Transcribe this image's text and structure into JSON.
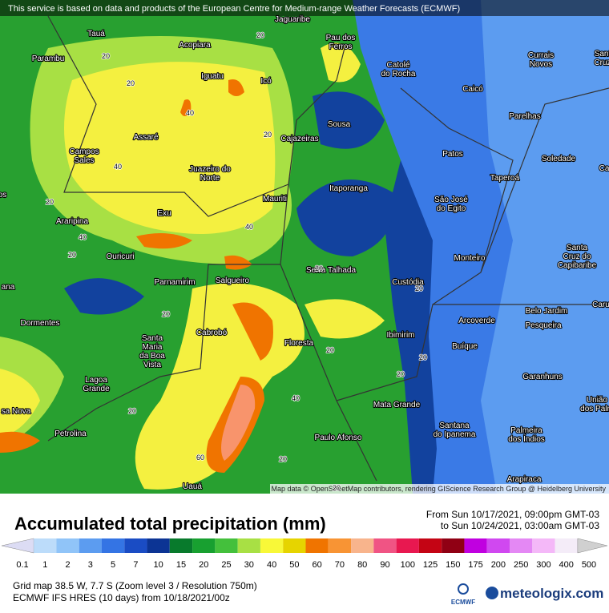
{
  "banner": "This service is based on data and products of the European Centre for Medium-range Weather Forecasts (ECMWF)",
  "map": {
    "cities": [
      [
        "Jaguaribe"
      ],
      [
        "Tauá"
      ],
      [
        "Acopiara"
      ],
      [
        "Pau dos",
        "Ferros"
      ],
      [
        "Parambu"
      ],
      [
        "Catolé",
        "do Rocha"
      ],
      [
        "Currais",
        "Novos"
      ],
      [
        "Sant",
        "Cruz"
      ],
      [
        "Iguatu"
      ],
      [
        "Icó"
      ],
      [
        "Caicó"
      ],
      [
        "Parelhas"
      ],
      [
        "Sousa"
      ],
      [
        "Assaré"
      ],
      [
        "Cajazeiras"
      ],
      [
        "Campos",
        "Sales"
      ],
      [
        "Patos"
      ],
      [
        "Soledade"
      ],
      [
        "Ca"
      ],
      [
        "os"
      ],
      [
        "Juazeiro do",
        "Norte"
      ],
      [
        "Taperoá"
      ],
      [
        "Itaporanga"
      ],
      [
        "Mauriti"
      ],
      [
        "São José",
        "do Egito"
      ],
      [
        "Exu"
      ],
      [
        "Araripina"
      ],
      [
        "Santa",
        "Cruz do",
        "Capibaribe"
      ],
      [
        "Ouricuri"
      ],
      [
        "Monteiro"
      ],
      [
        "Serra Talhada"
      ],
      [
        "Salgueiro"
      ],
      [
        "Parnamirim"
      ],
      [
        "Custódia"
      ],
      [
        "ana"
      ],
      [
        "Caru"
      ],
      [
        "Belo Jardim"
      ],
      [
        "Pesqueira"
      ],
      [
        "Arcoverde"
      ],
      [
        "Dormentes"
      ],
      [
        "Cabrobó"
      ],
      [
        "Ibimirim"
      ],
      [
        "Santa",
        "Maria",
        "da Boa",
        "Vista"
      ],
      [
        "Floresta"
      ],
      [
        "Buíque"
      ],
      [
        "Garanhuns"
      ],
      [
        "Lagoa",
        "Grande"
      ],
      [
        "União",
        "dos Palm"
      ],
      [
        "Mata Grande"
      ],
      [
        "sa Nova"
      ],
      [
        "Santana",
        "do Ipanema"
      ],
      [
        "Petrolina"
      ],
      [
        "Paulo Afonso"
      ],
      [
        "Palmeira",
        "dos Índios"
      ],
      [
        "Arapiraca"
      ],
      [
        "Uauá"
      ]
    ],
    "contour_labels": [
      20,
      20,
      20,
      40,
      40,
      20,
      40,
      20,
      40,
      20,
      20,
      20,
      20,
      20,
      40,
      20,
      20,
      20,
      20,
      20,
      60
    ],
    "attribution": "Map data © OpenStreetMap contributors, rendering GIScience Research Group @ Heidelberg University"
  },
  "legend": {
    "title": "Accumulated total precipitation (mm)",
    "period_from": "From Sun 10/17/2021, 09:00pm GMT-03",
    "period_to": "to Sun 10/24/2021, 03:00am GMT-03",
    "values": [
      0.1,
      1,
      2,
      3,
      5,
      7,
      10,
      15,
      20,
      25,
      30,
      40,
      50,
      60,
      70,
      80,
      90,
      100,
      125,
      150,
      175,
      200,
      250,
      300,
      400,
      500
    ],
    "colors": [
      "#dcdcf4",
      "#bcdcfa",
      "#90c4f8",
      "#5c9cf0",
      "#3474e4",
      "#1a4cc4",
      "#0c3494",
      "#087a2c",
      "#18a030",
      "#44c03c",
      "#a8e044",
      "#f8f838",
      "#e6d400",
      "#f07400",
      "#f89434",
      "#f8b48c",
      "#f05484",
      "#e81850",
      "#c40414",
      "#900014",
      "#c000e0",
      "#d048f0",
      "#e488f4",
      "#f4b8f8",
      "#f4ecf8",
      "#d0d0d0"
    ]
  },
  "footer": {
    "grid_info": "Grid map 38.5 W, 7.7 S (Zoom level 3 / Resolution 750m)",
    "model_info": "ECMWF IFS HRES (10 days) from 10/18/2021/00z",
    "ecmwf_logo": "ECMWF",
    "brand": "meteologix.com"
  }
}
